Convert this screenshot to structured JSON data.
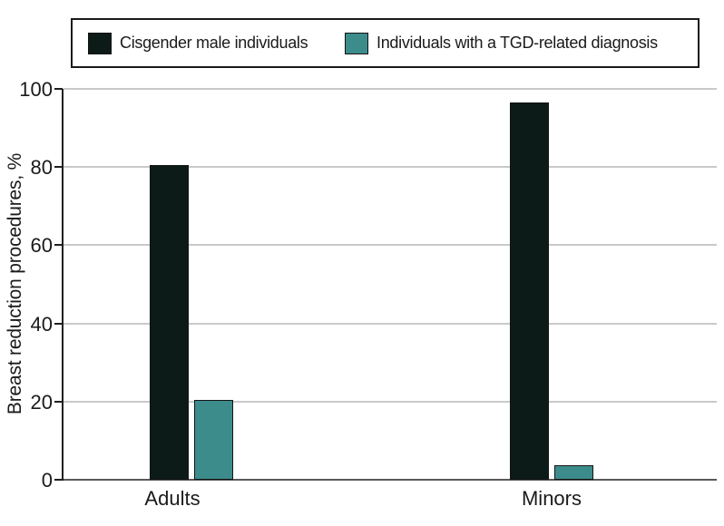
{
  "chart_data": {
    "type": "bar",
    "title": "",
    "categories": [
      "Adults",
      "Minors"
    ],
    "series": [
      {
        "name": "Cisgender male individuals",
        "color": "#0d1b18",
        "values": [
          80.5,
          96.5
        ]
      },
      {
        "name": "Individuals with a TGD-related diagnosis",
        "color": "#3d8c8c",
        "values": [
          20.4,
          3.8
        ]
      }
    ],
    "xlabel": "",
    "ylabel": "Breast reduction procedures, %",
    "ylim": [
      0,
      100
    ],
    "yticks": [
      0,
      20,
      40,
      60,
      80,
      100
    ],
    "grid": "horizontal",
    "legend_position": "top"
  },
  "colors": {
    "background": "#ffffff",
    "grid": "#c9c9c9",
    "baseline": "#595959",
    "axis": "#1f1f1f",
    "bar_border": "#141414",
    "text": "#1a1a1a"
  }
}
